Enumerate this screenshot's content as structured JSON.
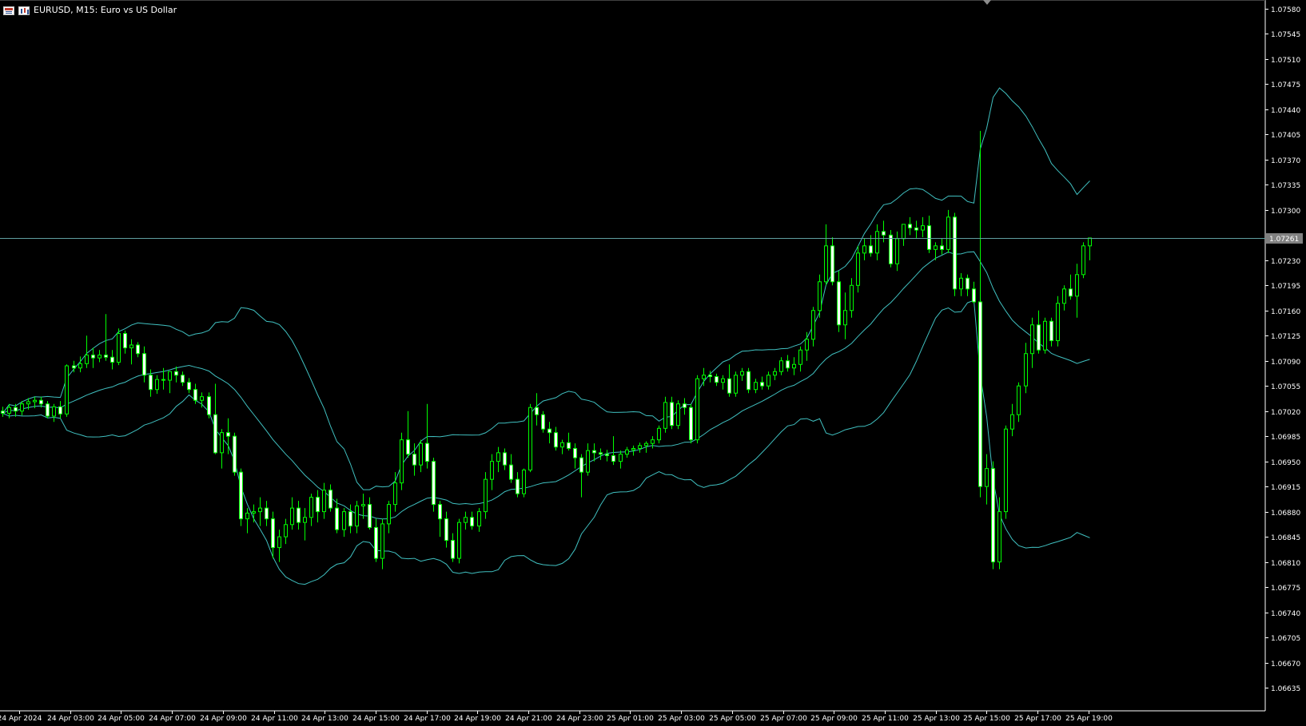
{
  "window": {
    "title": "EURUSD, M15:  Euro vs US Dollar",
    "chart_menu_icon": "chart-menu-icon",
    "indicator_icon": "indicators-icon",
    "scroll_marker_icon": "chart-shift-marker-icon"
  },
  "colors": {
    "background": "#000000",
    "axis": "#ffffff",
    "bull_body": "#000000",
    "bull_wick": "#00ff00",
    "bear_body": "#ffffff",
    "bands": "#40c0c0",
    "bid_line": "#5f9ea0",
    "price_tag_bg": "#808080"
  },
  "price_scale": {
    "labels": [
      "1.07580",
      "1.07545",
      "1.07510",
      "1.07475",
      "1.07440",
      "1.07405",
      "1.07370",
      "1.07335",
      "1.07300",
      "1.07230",
      "1.07195",
      "1.07160",
      "1.07125",
      "1.07090",
      "1.07055",
      "1.07020",
      "1.06985",
      "1.06950",
      "1.06915",
      "1.06880",
      "1.06845",
      "1.06810",
      "1.06775",
      "1.06740",
      "1.06705",
      "1.06670",
      "1.06635"
    ],
    "current_price": "1.07261"
  },
  "time_scale": {
    "labels": [
      "24 Apr 2024",
      "24 Apr 03:00",
      "24 Apr 05:00",
      "24 Apr 07:00",
      "24 Apr 09:00",
      "24 Apr 11:00",
      "24 Apr 13:00",
      "24 Apr 15:00",
      "24 Apr 17:00",
      "24 Apr 19:00",
      "24 Apr 21:00",
      "24 Apr 23:00",
      "25 Apr 01:00",
      "25 Apr 03:00",
      "25 Apr 05:00",
      "25 Apr 07:00",
      "25 Apr 09:00",
      "25 Apr 11:00",
      "25 Apr 13:00",
      "25 Apr 15:00",
      "25 Apr 17:00",
      "25 Apr 19:00"
    ]
  },
  "chart_data": {
    "type": "candlestick",
    "symbol": "EURUSD",
    "timeframe": "M15",
    "indicator": "Bollinger Bands",
    "ylim": [
      1.06605,
      1.0759
    ],
    "candles_count": 170,
    "candles": [
      [
        1.0702,
        1.07026,
        1.07012,
        1.07017
      ],
      [
        1.07017,
        1.0703,
        1.0701,
        1.07025
      ],
      [
        1.07025,
        1.0703,
        1.07012,
        1.0702
      ],
      [
        1.0702,
        1.07034,
        1.07014,
        1.0703
      ],
      [
        1.0703,
        1.07038,
        1.07022,
        1.07033
      ],
      [
        1.07033,
        1.0704,
        1.07024,
        1.07035
      ],
      [
        1.07035,
        1.0704,
        1.07025,
        1.0703
      ],
      [
        1.0703,
        1.07034,
        1.0701,
        1.07013
      ],
      [
        1.07013,
        1.0703,
        1.07005,
        1.07026
      ],
      [
        1.07026,
        1.07034,
        1.0701,
        1.07016
      ],
      [
        1.07016,
        1.07085,
        1.07012,
        1.07083
      ],
      [
        1.07083,
        1.0709,
        1.07074,
        1.0708
      ],
      [
        1.0708,
        1.07096,
        1.07074,
        1.07086
      ],
      [
        1.07086,
        1.07125,
        1.0708,
        1.07098
      ],
      [
        1.07098,
        1.07108,
        1.0708,
        1.07094
      ],
      [
        1.07094,
        1.07105,
        1.07088,
        1.07098
      ],
      [
        1.07098,
        1.07155,
        1.0709,
        1.07095
      ],
      [
        1.07095,
        1.07105,
        1.07078,
        1.07088
      ],
      [
        1.07088,
        1.07135,
        1.07084,
        1.07128
      ],
      [
        1.07128,
        1.07132,
        1.071,
        1.07108
      ],
      [
        1.07108,
        1.0712,
        1.07085,
        1.07112
      ],
      [
        1.07112,
        1.07116,
        1.07095,
        1.071
      ],
      [
        1.071,
        1.0711,
        1.0706,
        1.0707
      ],
      [
        1.0707,
        1.07078,
        1.0704,
        1.0705
      ],
      [
        1.0705,
        1.0707,
        1.07044,
        1.07064
      ],
      [
        1.07064,
        1.0708,
        1.0705,
        1.07063
      ],
      [
        1.07063,
        1.07072,
        1.07045,
        1.07075
      ],
      [
        1.07075,
        1.07082,
        1.0706,
        1.0707
      ],
      [
        1.0707,
        1.07075,
        1.07055,
        1.0706
      ],
      [
        1.0706,
        1.07066,
        1.07045,
        1.0705
      ],
      [
        1.0705,
        1.07058,
        1.0703,
        1.07035
      ],
      [
        1.07035,
        1.07046,
        1.07025,
        1.0704
      ],
      [
        1.0704,
        1.07046,
        1.0701,
        1.07015
      ],
      [
        1.07015,
        1.07058,
        1.0696,
        1.06962
      ],
      [
        1.06962,
        1.06995,
        1.0694,
        1.0699
      ],
      [
        1.0699,
        1.0701,
        1.0696,
        1.06985
      ],
      [
        1.06985,
        1.0699,
        1.0693,
        1.06935
      ],
      [
        1.06935,
        1.0694,
        1.0686,
        1.0687
      ],
      [
        1.0687,
        1.06885,
        1.0685,
        1.06878
      ],
      [
        1.06878,
        1.0689,
        1.06865,
        1.0688
      ],
      [
        1.0688,
        1.069,
        1.0686,
        1.06885
      ],
      [
        1.06885,
        1.06895,
        1.0686,
        1.0687
      ],
      [
        1.0687,
        1.0688,
        1.06815,
        1.0683
      ],
      [
        1.0683,
        1.06855,
        1.0681,
        1.06845
      ],
      [
        1.06845,
        1.0687,
        1.06835,
        1.06862
      ],
      [
        1.06862,
        1.069,
        1.06855,
        1.06885
      ],
      [
        1.06885,
        1.06895,
        1.06855,
        1.06865
      ],
      [
        1.06865,
        1.06885,
        1.0684,
        1.06872
      ],
      [
        1.06872,
        1.06905,
        1.0686,
        1.069
      ],
      [
        1.069,
        1.0691,
        1.06865,
        1.0688
      ],
      [
        1.0688,
        1.0692,
        1.0687,
        1.0691
      ],
      [
        1.0691,
        1.06918,
        1.0688,
        1.06885
      ],
      [
        1.06885,
        1.06898,
        1.0685,
        1.06855
      ],
      [
        1.06855,
        1.06885,
        1.06845,
        1.0688
      ],
      [
        1.0688,
        1.0689,
        1.0685,
        1.0686
      ],
      [
        1.0686,
        1.06895,
        1.0685,
        1.06888
      ],
      [
        1.06888,
        1.06905,
        1.0687,
        1.0689
      ],
      [
        1.0689,
        1.069,
        1.06855,
        1.06858
      ],
      [
        1.06858,
        1.0687,
        1.0681,
        1.06815
      ],
      [
        1.06815,
        1.0687,
        1.068,
        1.06863
      ],
      [
        1.06863,
        1.06895,
        1.0685,
        1.0689
      ],
      [
        1.0689,
        1.06935,
        1.0688,
        1.0692
      ],
      [
        1.0692,
        1.0699,
        1.0691,
        1.0698
      ],
      [
        1.0698,
        1.0702,
        1.06955,
        1.0696
      ],
      [
        1.0696,
        1.06975,
        1.0693,
        1.06945
      ],
      [
        1.06945,
        1.0698,
        1.06935,
        1.06975
      ],
      [
        1.06975,
        1.0703,
        1.0694,
        1.0695
      ],
      [
        1.0695,
        1.06955,
        1.0688,
        1.0689
      ],
      [
        1.0689,
        1.06895,
        1.06845,
        1.0687
      ],
      [
        1.0687,
        1.0688,
        1.0683,
        1.0684
      ],
      [
        1.0684,
        1.0685,
        1.0681,
        1.06815
      ],
      [
        1.06815,
        1.0687,
        1.06808,
        1.06865
      ],
      [
        1.06865,
        1.0688,
        1.06855,
        1.06872
      ],
      [
        1.06872,
        1.0688,
        1.06855,
        1.0686
      ],
      [
        1.0686,
        1.06885,
        1.06852,
        1.0688
      ],
      [
        1.0688,
        1.06935,
        1.0687,
        1.06925
      ],
      [
        1.06925,
        1.0696,
        1.0691,
        1.0695
      ],
      [
        1.0695,
        1.0697,
        1.06935,
        1.06962
      ],
      [
        1.06962,
        1.06968,
        1.06938,
        1.06945
      ],
      [
        1.06945,
        1.0696,
        1.0692,
        1.06925
      ],
      [
        1.06925,
        1.06935,
        1.069,
        1.06905
      ],
      [
        1.06905,
        1.0694,
        1.069,
        1.06938
      ],
      [
        1.06938,
        1.0703,
        1.06935,
        1.07025
      ],
      [
        1.07025,
        1.07045,
        1.07,
        1.07015
      ],
      [
        1.07015,
        1.0702,
        1.0699,
        1.06995
      ],
      [
        1.06995,
        1.07005,
        1.06975,
        1.0699
      ],
      [
        1.0699,
        1.06998,
        1.06965,
        1.0697
      ],
      [
        1.0697,
        1.0698,
        1.0696,
        1.06976
      ],
      [
        1.06976,
        1.0699,
        1.06965,
        1.06968
      ],
      [
        1.06968,
        1.06975,
        1.0694,
        1.06955
      ],
      [
        1.06955,
        1.0696,
        1.069,
        1.06935
      ],
      [
        1.06935,
        1.06975,
        1.0693,
        1.06965
      ],
      [
        1.06965,
        1.06975,
        1.0695,
        1.06962
      ],
      [
        1.06962,
        1.06968,
        1.06952,
        1.0696
      ],
      [
        1.0696,
        1.06966,
        1.0695,
        1.06958
      ],
      [
        1.06958,
        1.06985,
        1.06945,
        1.0695
      ],
      [
        1.0695,
        1.06965,
        1.0694,
        1.0696
      ],
      [
        1.0696,
        1.0697,
        1.06955,
        1.06966
      ],
      [
        1.06966,
        1.06972,
        1.06958,
        1.06968
      ],
      [
        1.06968,
        1.06976,
        1.06962,
        1.06972
      ],
      [
        1.06972,
        1.06978,
        1.06962,
        1.06975
      ],
      [
        1.06975,
        1.06985,
        1.06968,
        1.0698
      ],
      [
        1.0698,
        1.07,
        1.06975,
        1.06996
      ],
      [
        1.06996,
        1.0704,
        1.0699,
        1.07032
      ],
      [
        1.07032,
        1.0704,
        1.06995,
        1.07
      ],
      [
        1.07,
        1.07035,
        1.06995,
        1.0703
      ],
      [
        1.0703,
        1.07038,
        1.07015,
        1.07025
      ],
      [
        1.07025,
        1.0703,
        1.06975,
        1.0698
      ],
      [
        1.0698,
        1.0707,
        1.06975,
        1.07065
      ],
      [
        1.07065,
        1.0708,
        1.07055,
        1.0707
      ],
      [
        1.0707,
        1.07076,
        1.0706,
        1.07068
      ],
      [
        1.07068,
        1.07072,
        1.07055,
        1.0706
      ],
      [
        1.0706,
        1.0707,
        1.0705,
        1.07065
      ],
      [
        1.07065,
        1.07085,
        1.0704,
        1.07045
      ],
      [
        1.07045,
        1.07075,
        1.0704,
        1.0707
      ],
      [
        1.0707,
        1.0708,
        1.07062,
        1.07075
      ],
      [
        1.07075,
        1.0708,
        1.07045,
        1.0705
      ],
      [
        1.0705,
        1.07065,
        1.07045,
        1.0706
      ],
      [
        1.0706,
        1.07068,
        1.0705,
        1.07055
      ],
      [
        1.07055,
        1.07075,
        1.0705,
        1.0707
      ],
      [
        1.0707,
        1.0708,
        1.07063,
        1.07075
      ],
      [
        1.07075,
        1.07095,
        1.0707,
        1.0709
      ],
      [
        1.0709,
        1.07098,
        1.07075,
        1.0708
      ],
      [
        1.0708,
        1.07095,
        1.0707,
        1.07085
      ],
      [
        1.07085,
        1.0711,
        1.07075,
        1.07105
      ],
      [
        1.07105,
        1.0713,
        1.0709,
        1.0712
      ],
      [
        1.0712,
        1.07165,
        1.0711,
        1.0716
      ],
      [
        1.0716,
        1.0721,
        1.0715,
        1.072
      ],
      [
        1.072,
        1.0728,
        1.07195,
        1.0725
      ],
      [
        1.0725,
        1.07262,
        1.07195,
        1.072
      ],
      [
        1.072,
        1.07215,
        1.0713,
        1.0714
      ],
      [
        1.0714,
        1.07185,
        1.0712,
        1.0716
      ],
      [
        1.0716,
        1.07205,
        1.0715,
        1.07195
      ],
      [
        1.07195,
        1.0725,
        1.07185,
        1.0724
      ],
      [
        1.0724,
        1.0726,
        1.0723,
        1.0725
      ],
      [
        1.0725,
        1.07265,
        1.07235,
        1.0724
      ],
      [
        1.0724,
        1.0728,
        1.0723,
        1.0727
      ],
      [
        1.0727,
        1.07285,
        1.07255,
        1.07265
      ],
      [
        1.07265,
        1.07272,
        1.0722,
        1.07225
      ],
      [
        1.07225,
        1.0727,
        1.07215,
        1.0726
      ],
      [
        1.0726,
        1.0728,
        1.0725,
        1.0728
      ],
      [
        1.0728,
        1.0729,
        1.07265,
        1.07275
      ],
      [
        1.07275,
        1.07285,
        1.0726,
        1.07272
      ],
      [
        1.07272,
        1.0729,
        1.07262,
        1.07278
      ],
      [
        1.07278,
        1.07292,
        1.0724,
        1.07245
      ],
      [
        1.07245,
        1.07255,
        1.0723,
        1.0725
      ],
      [
        1.0725,
        1.0726,
        1.07238,
        1.07245
      ],
      [
        1.07245,
        1.073,
        1.0724,
        1.0729
      ],
      [
        1.0729,
        1.07296,
        1.0718,
        1.0719
      ],
      [
        1.0719,
        1.07212,
        1.0718,
        1.07205
      ],
      [
        1.07205,
        1.0721,
        1.0718,
        1.0719
      ],
      [
        1.0719,
        1.072,
        1.0717,
        1.07172
      ],
      [
        1.07172,
        1.0741,
        1.069,
        1.06915
      ],
      [
        1.06915,
        1.0696,
        1.0689,
        1.0694
      ],
      [
        1.0694,
        1.0695,
        1.068,
        1.0681
      ],
      [
        1.0681,
        1.069,
        1.068,
        1.0688
      ],
      [
        1.0688,
        1.07,
        1.0687,
        1.06995
      ],
      [
        1.06995,
        1.0703,
        1.06985,
        1.07015
      ],
      [
        1.07015,
        1.0706,
        1.07005,
        1.07055
      ],
      [
        1.07055,
        1.07115,
        1.07045,
        1.071
      ],
      [
        1.071,
        1.0715,
        1.0708,
        1.0714
      ],
      [
        1.0714,
        1.0716,
        1.071,
        1.07105
      ],
      [
        1.07105,
        1.0715,
        1.071,
        1.07145
      ],
      [
        1.07145,
        1.0715,
        1.0711,
        1.07118
      ],
      [
        1.07118,
        1.0718,
        1.0711,
        1.0717
      ],
      [
        1.0717,
        1.07195,
        1.0716,
        1.0719
      ],
      [
        1.0719,
        1.0721,
        1.07175,
        1.0718
      ],
      [
        1.0718,
        1.07225,
        1.0715,
        1.0721
      ],
      [
        1.0721,
        1.07255,
        1.07205,
        1.0725
      ],
      [
        1.0725,
        1.07261,
        1.0723,
        1.07261
      ]
    ]
  }
}
